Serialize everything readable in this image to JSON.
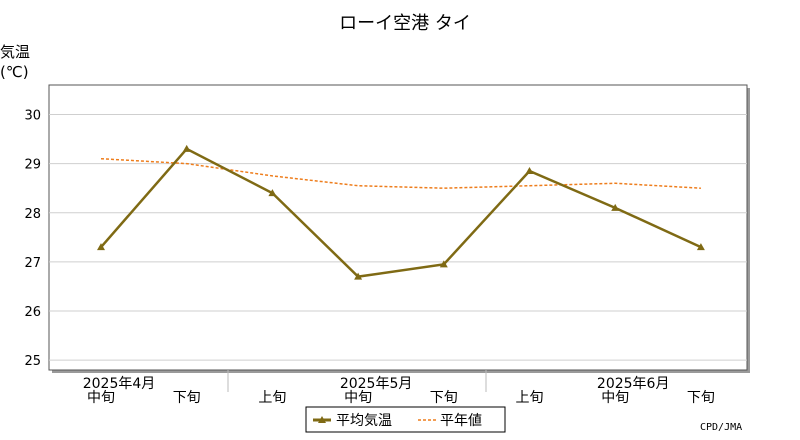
{
  "chart_data": {
    "type": "line",
    "title": "ローイ空港 タイ",
    "ylabel_line1": "気温",
    "ylabel_line2": "(℃)",
    "ylim": [
      24.8,
      30.6
    ],
    "yticks": [
      25,
      26,
      27,
      28,
      29,
      30
    ],
    "grid": true,
    "x_labels": [
      {
        "period": "中旬",
        "month": "2025年4月"
      },
      {
        "period": "下旬",
        "month": ""
      },
      {
        "period": "上旬",
        "month": ""
      },
      {
        "period": "中旬",
        "month": "2025年5月"
      },
      {
        "period": "下旬",
        "month": ""
      },
      {
        "period": "上旬",
        "month": ""
      },
      {
        "period": "中旬",
        "month": "2025年6月"
      },
      {
        "period": "下旬",
        "month": ""
      }
    ],
    "series": [
      {
        "name": "平均気温",
        "color": "#7f6a14",
        "style": "solid-triangle",
        "values": [
          27.3,
          29.3,
          28.4,
          26.7,
          26.95,
          28.85,
          28.1,
          27.3
        ]
      },
      {
        "name": "平年値",
        "color": "#ee7d1c",
        "style": "dotted",
        "values": [
          29.1,
          29.0,
          28.75,
          28.55,
          28.5,
          28.55,
          28.6,
          28.5
        ]
      }
    ],
    "legend_position": "bottom-center",
    "credit": "CPD/JMA"
  }
}
